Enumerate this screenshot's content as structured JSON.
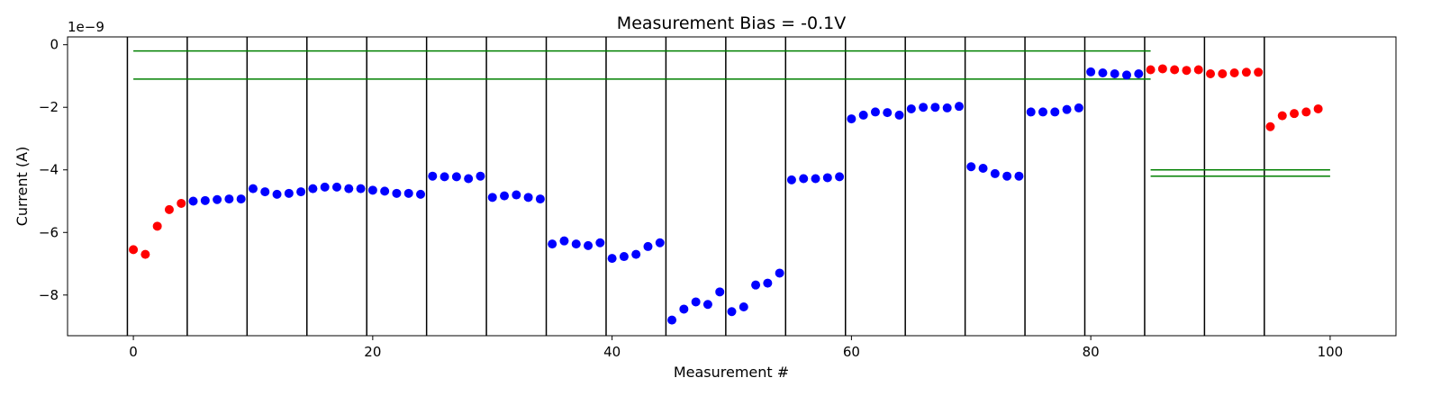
{
  "chart_data": {
    "type": "scatter",
    "title": "Measurement Bias = -0.1V",
    "xlabel": "Measurement #",
    "ylabel": "Current (A)",
    "y_offset_label": "1e−9",
    "xlim": [
      -5.5,
      105.5
    ],
    "ylim": [
      -9.3,
      0.25
    ],
    "x_ticks": [
      0,
      20,
      40,
      60,
      80,
      100
    ],
    "y_ticks": [
      0,
      -2,
      -4,
      -6,
      -8
    ],
    "y_tick_labels": [
      "0",
      "−2",
      "−4",
      "−6",
      "−8"
    ],
    "grid": false,
    "point_colors": {
      "red": "#ff0000",
      "blue": "#0000ff"
    },
    "boundary_color": "#000000",
    "threshold_color": "#008000",
    "vertical_lines_x": [
      -0.5,
      4.5,
      9.5,
      14.5,
      19.5,
      24.5,
      29.5,
      34.5,
      39.5,
      44.5,
      49.5,
      54.5,
      59.5,
      64.5,
      69.5,
      74.5,
      79.5,
      84.5,
      89.5,
      94.5
    ],
    "horizontal_lines": [
      {
        "x1": 0,
        "x2": 85,
        "y": -0.2
      },
      {
        "x1": 0,
        "x2": 85,
        "y": -1.1
      },
      {
        "x1": 85,
        "x2": 100,
        "y": -4.0
      },
      {
        "x1": 85,
        "x2": 100,
        "y": -4.2
      }
    ],
    "series": [
      {
        "color": "red",
        "points": [
          [
            0,
            -6.55
          ],
          [
            1,
            -6.7
          ],
          [
            2,
            -5.8
          ],
          [
            3,
            -5.27
          ],
          [
            4,
            -5.07
          ],
          [
            85,
            -0.8
          ],
          [
            86,
            -0.77
          ],
          [
            87,
            -0.8
          ],
          [
            88,
            -0.82
          ],
          [
            89,
            -0.8
          ],
          [
            90,
            -0.93
          ],
          [
            91,
            -0.93
          ],
          [
            92,
            -0.9
          ],
          [
            93,
            -0.88
          ],
          [
            94,
            -0.88
          ],
          [
            95,
            -2.62
          ],
          [
            96,
            -2.27
          ],
          [
            97,
            -2.2
          ],
          [
            98,
            -2.15
          ],
          [
            99,
            -2.05
          ]
        ]
      },
      {
        "color": "blue",
        "points": [
          [
            5,
            -5.0
          ],
          [
            6,
            -4.98
          ],
          [
            7,
            -4.95
          ],
          [
            8,
            -4.93
          ],
          [
            9,
            -4.93
          ],
          [
            10,
            -4.6
          ],
          [
            11,
            -4.7
          ],
          [
            12,
            -4.78
          ],
          [
            13,
            -4.75
          ],
          [
            14,
            -4.7
          ],
          [
            15,
            -4.6
          ],
          [
            16,
            -4.55
          ],
          [
            17,
            -4.55
          ],
          [
            18,
            -4.6
          ],
          [
            19,
            -4.6
          ],
          [
            20,
            -4.65
          ],
          [
            21,
            -4.68
          ],
          [
            22,
            -4.75
          ],
          [
            23,
            -4.75
          ],
          [
            24,
            -4.78
          ],
          [
            25,
            -4.2
          ],
          [
            26,
            -4.22
          ],
          [
            27,
            -4.22
          ],
          [
            28,
            -4.28
          ],
          [
            29,
            -4.2
          ],
          [
            30,
            -4.88
          ],
          [
            31,
            -4.83
          ],
          [
            32,
            -4.8
          ],
          [
            33,
            -4.88
          ],
          [
            34,
            -4.93
          ],
          [
            35,
            -6.37
          ],
          [
            36,
            -6.27
          ],
          [
            37,
            -6.37
          ],
          [
            38,
            -6.42
          ],
          [
            39,
            -6.33
          ],
          [
            40,
            -6.83
          ],
          [
            41,
            -6.77
          ],
          [
            42,
            -6.7
          ],
          [
            43,
            -6.45
          ],
          [
            44,
            -6.33
          ],
          [
            45,
            -8.8
          ],
          [
            46,
            -8.45
          ],
          [
            47,
            -8.22
          ],
          [
            48,
            -8.3
          ],
          [
            49,
            -7.9
          ],
          [
            50,
            -8.53
          ],
          [
            51,
            -8.38
          ],
          [
            52,
            -7.68
          ],
          [
            53,
            -7.62
          ],
          [
            54,
            -7.3
          ],
          [
            55,
            -4.32
          ],
          [
            56,
            -4.28
          ],
          [
            57,
            -4.28
          ],
          [
            58,
            -4.25
          ],
          [
            59,
            -4.22
          ],
          [
            60,
            -2.37
          ],
          [
            61,
            -2.25
          ],
          [
            62,
            -2.15
          ],
          [
            63,
            -2.17
          ],
          [
            64,
            -2.25
          ],
          [
            65,
            -2.05
          ],
          [
            66,
            -2.0
          ],
          [
            67,
            -2.0
          ],
          [
            68,
            -2.02
          ],
          [
            69,
            -1.97
          ],
          [
            70,
            -3.9
          ],
          [
            71,
            -3.95
          ],
          [
            72,
            -4.12
          ],
          [
            73,
            -4.2
          ],
          [
            74,
            -4.2
          ],
          [
            75,
            -2.15
          ],
          [
            76,
            -2.15
          ],
          [
            77,
            -2.15
          ],
          [
            78,
            -2.07
          ],
          [
            79,
            -2.02
          ],
          [
            80,
            -0.87
          ],
          [
            81,
            -0.9
          ],
          [
            82,
            -0.93
          ],
          [
            83,
            -0.97
          ],
          [
            84,
            -0.93
          ]
        ]
      }
    ]
  }
}
